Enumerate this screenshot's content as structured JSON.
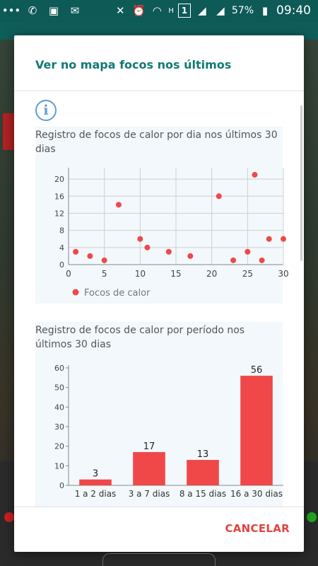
{
  "status_bar": {
    "time": "09:40",
    "battery": "57%",
    "network_letter": "H",
    "sim_slot": "1",
    "icons": [
      "more-icon",
      "whatsapp-icon",
      "gallery-icon",
      "mail-icon",
      "mute-icon",
      "alarm-icon",
      "wifi-icon",
      "signal-icon",
      "battery-icon"
    ]
  },
  "dialog": {
    "title": "Ver no mapa focos nos últimos",
    "info_icon": "info-icon",
    "cancel_label": "CANCELAR"
  },
  "colors": {
    "accent_title": "#117a76",
    "marker": "#f04848",
    "cancel": "#e2433f",
    "chart_bg": "#f2f8fb"
  },
  "chart_data": [
    {
      "type": "scatter",
      "title": "Registro de focos de calor por dia nos últimos 30 dias",
      "xlabel": "",
      "ylabel": "",
      "xlim": [
        0,
        30
      ],
      "ylim": [
        0,
        22
      ],
      "x_ticks": [
        0,
        5,
        10,
        15,
        20,
        25,
        30
      ],
      "y_ticks": [
        0,
        4,
        8,
        12,
        16,
        20
      ],
      "grid": true,
      "legend": "bottom-left",
      "series": [
        {
          "name": "Focos de calor",
          "points": [
            {
              "x": 1,
              "y": 3
            },
            {
              "x": 3,
              "y": 2
            },
            {
              "x": 5,
              "y": 1
            },
            {
              "x": 7,
              "y": 14
            },
            {
              "x": 10,
              "y": 6
            },
            {
              "x": 11,
              "y": 4
            },
            {
              "x": 14,
              "y": 3
            },
            {
              "x": 17,
              "y": 2
            },
            {
              "x": 21,
              "y": 16
            },
            {
              "x": 23,
              "y": 1
            },
            {
              "x": 25,
              "y": 3
            },
            {
              "x": 26,
              "y": 21
            },
            {
              "x": 27,
              "y": 1
            },
            {
              "x": 28,
              "y": 6
            },
            {
              "x": 30,
              "y": 6
            }
          ]
        }
      ]
    },
    {
      "type": "bar",
      "title": "Registro de focos de calor por período nos últimos 30 dias",
      "xlabel": "",
      "ylabel": "",
      "categories": [
        "1 a 2 dias",
        "3 a 7 dias",
        "8 a 15 dias",
        "16 a 30 dias"
      ],
      "values": [
        3,
        17,
        13,
        56
      ],
      "ylim": [
        0,
        60
      ],
      "y_ticks": [
        0,
        10,
        20,
        30,
        40,
        50,
        60
      ],
      "grid": false,
      "data_labels": [
        "3",
        "17",
        "13",
        "56"
      ]
    }
  ]
}
